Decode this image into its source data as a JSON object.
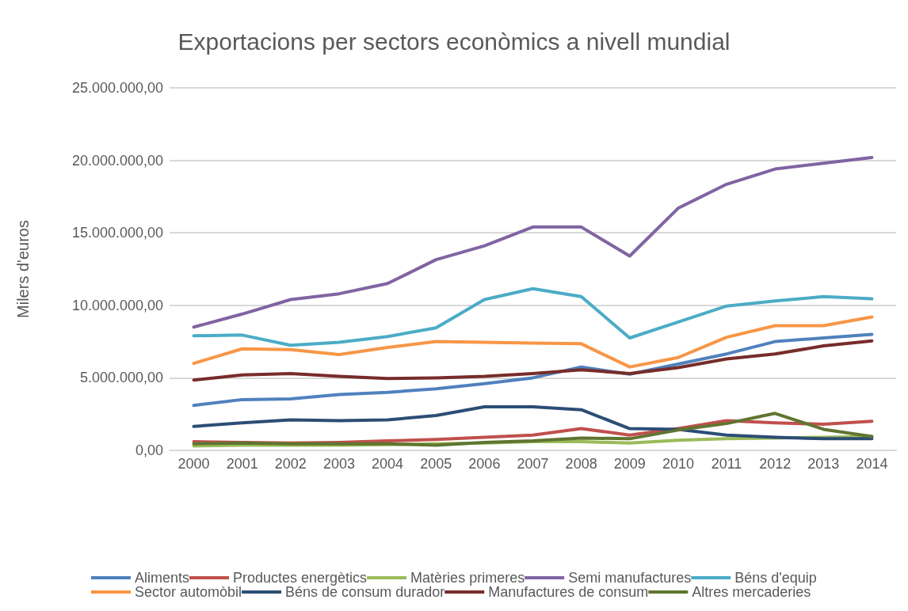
{
  "chart_data": {
    "type": "line",
    "title": "Exportacions per sectors econòmics a nivell mundial",
    "ylabel": "Milers d'euros",
    "categories": [
      "2000",
      "2001",
      "2002",
      "2003",
      "2004",
      "2005",
      "2006",
      "2007",
      "2008",
      "2009",
      "2010",
      "2011",
      "2012",
      "2013",
      "2014"
    ],
    "ylim": [
      0,
      25000000
    ],
    "yticks": [
      {
        "value": 0,
        "label": "0,00"
      },
      {
        "value": 5000000,
        "label": "5.000.000,00"
      },
      {
        "value": 10000000,
        "label": "10.000.000,00"
      },
      {
        "value": 15000000,
        "label": "15.000.000,00"
      },
      {
        "value": 20000000,
        "label": "20.000.000,00"
      },
      {
        "value": 25000000,
        "label": "25.000.000,00"
      }
    ],
    "grid": "y",
    "legend": "bottom",
    "marker": "none",
    "line_style": "solid",
    "series": [
      {
        "name": "Aliments",
        "color": "#4f81bd",
        "values": [
          3100000,
          3500000,
          3550000,
          3850000,
          4000000,
          4250000,
          4600000,
          5000000,
          5750000,
          5250000,
          5950000,
          6650000,
          7500000,
          7750000,
          8000000
        ]
      },
      {
        "name": "Productes energètics",
        "color": "#c0504d",
        "values": [
          600000,
          550000,
          500000,
          550000,
          650000,
          750000,
          900000,
          1050000,
          1500000,
          1050000,
          1500000,
          2050000,
          1900000,
          1800000,
          2000000
        ]
      },
      {
        "name": "Matèries primeres",
        "color": "#9bbb59",
        "values": [
          300000,
          350000,
          350000,
          350000,
          400000,
          450000,
          500000,
          600000,
          600000,
          500000,
          700000,
          800000,
          850000,
          900000,
          950000
        ]
      },
      {
        "name": "Semi manufactures",
        "color": "#8064a2",
        "values": [
          8500000,
          9400000,
          10400000,
          10800000,
          11500000,
          13150000,
          14100000,
          15400000,
          15400000,
          13400000,
          16700000,
          18350000,
          19400000,
          19800000,
          20200000
        ]
      },
      {
        "name": "Béns d'equip",
        "color": "#4bacc6",
        "values": [
          7900000,
          7950000,
          7250000,
          7450000,
          7850000,
          8450000,
          10400000,
          11150000,
          10600000,
          7750000,
          8850000,
          9950000,
          10300000,
          10600000,
          10450000
        ]
      },
      {
        "name": "Sector automòbil",
        "color": "#f79646",
        "values": [
          6000000,
          7000000,
          6950000,
          6600000,
          7100000,
          7500000,
          7450000,
          7400000,
          7350000,
          5750000,
          6400000,
          7800000,
          8600000,
          8600000,
          9200000
        ]
      },
      {
        "name": "Béns de consum durador",
        "color": "#2c4d75",
        "values": [
          1650000,
          1900000,
          2100000,
          2050000,
          2100000,
          2400000,
          3000000,
          3000000,
          2800000,
          1500000,
          1450000,
          1050000,
          900000,
          800000,
          800000
        ]
      },
      {
        "name": "Manufactures de consum",
        "color": "#772c2a",
        "values": [
          4850000,
          5200000,
          5300000,
          5100000,
          4950000,
          5000000,
          5100000,
          5300000,
          5550000,
          5300000,
          5700000,
          6300000,
          6650000,
          7200000,
          7550000
        ]
      },
      {
        "name": "Altres mercaderies",
        "color": "#5f7530",
        "values": [
          450000,
          500000,
          450000,
          450000,
          450000,
          350000,
          550000,
          650000,
          850000,
          800000,
          1400000,
          1850000,
          2550000,
          1450000,
          950000
        ]
      }
    ]
  }
}
